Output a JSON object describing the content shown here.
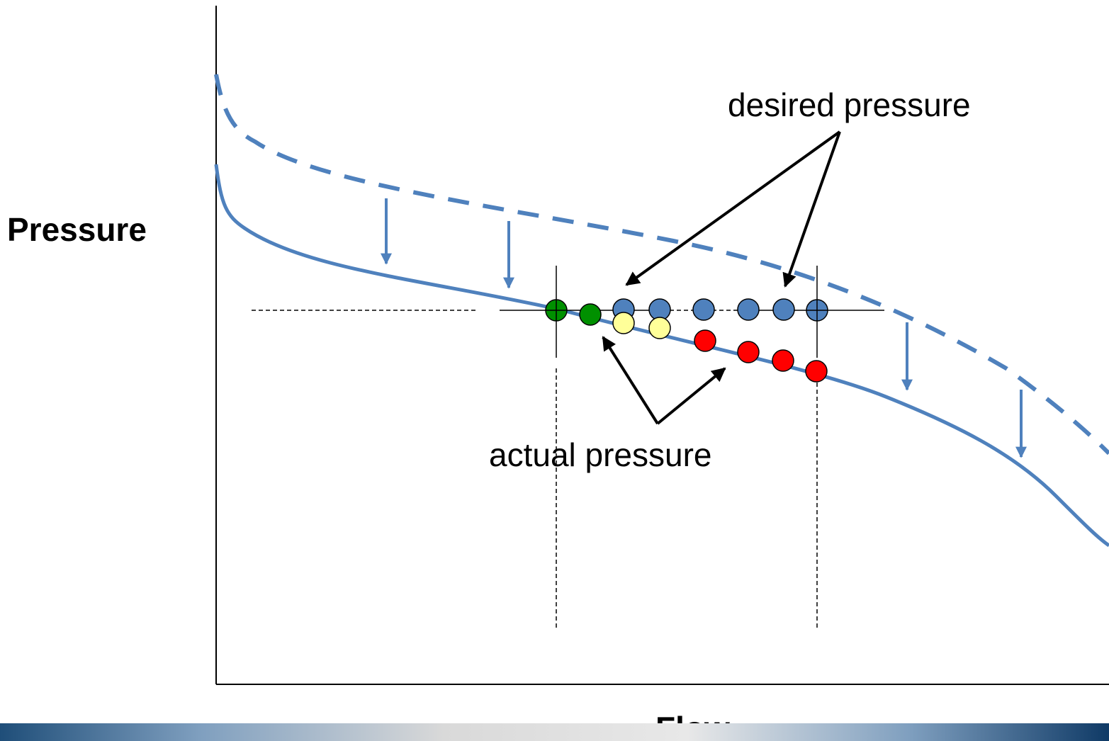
{
  "labels": {
    "y_axis": "Pressure",
    "x_axis": "Flow",
    "desired": "desired pressure",
    "actual": "actual pressure"
  },
  "colors": {
    "curve": "#4f81bd",
    "desired_point": "#4f81bd",
    "green": "#009000",
    "yellow": "#ffff99",
    "red": "#ff0000",
    "axis": "#000000"
  },
  "icons": {
    "arrow": "black-arrow",
    "shift": "down-arrow"
  }
}
